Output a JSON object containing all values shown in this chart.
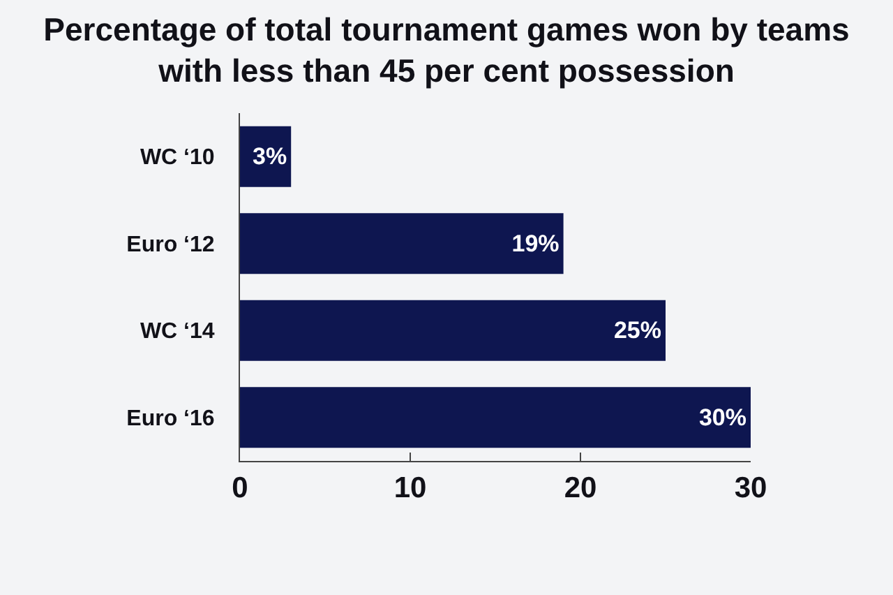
{
  "chart_data": {
    "type": "bar",
    "orientation": "horizontal",
    "title": "Percentage of total tournament games won by teams with less than 45 per cent possession",
    "categories": [
      "WC ‘10",
      "Euro ‘12",
      "WC ‘14",
      "Euro ‘16"
    ],
    "values": [
      3,
      19,
      25,
      30
    ],
    "value_labels": [
      "3%",
      "19%",
      "25%",
      "30%"
    ],
    "color": "#0e1650",
    "xlim": [
      0,
      30
    ],
    "xticks": [
      0,
      10,
      20,
      30
    ]
  }
}
